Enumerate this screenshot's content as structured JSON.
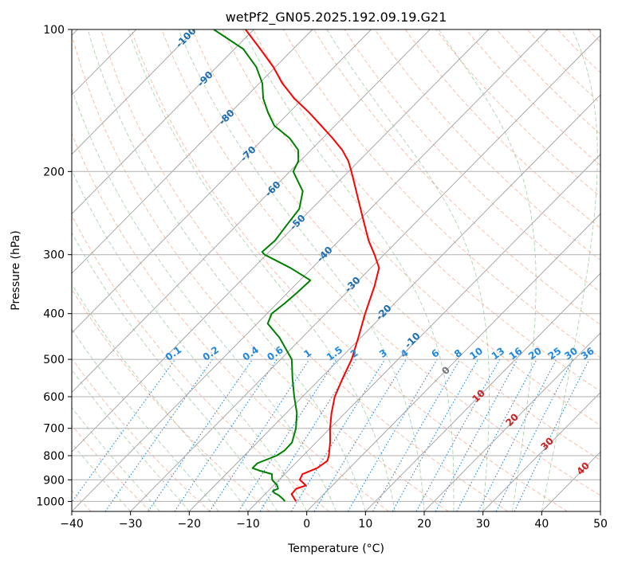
{
  "chart_data": {
    "type": "line",
    "subtype": "skew-T log-P diagram",
    "title": "wetPf2_GN05.2025.192.09.19.G21",
    "xlabel": "Temperature (°C)",
    "ylabel": "Pressure (hPa)",
    "xlim": [
      -40,
      50
    ],
    "ylim": [
      1050,
      100
    ],
    "y_scale": "log",
    "grid": true,
    "x_ticks": [
      -40,
      -30,
      -20,
      -10,
      0,
      10,
      20,
      30,
      40,
      50
    ],
    "y_ticks": [
      100,
      200,
      300,
      400,
      500,
      600,
      700,
      800,
      900,
      1000
    ],
    "isotherm_step_c": 10,
    "dry_adiabat_theta_c": [
      -40,
      -30,
      -20,
      -10,
      0,
      10,
      20,
      30,
      40,
      50,
      60,
      70,
      80,
      90,
      100,
      110,
      120,
      130,
      140,
      150,
      160,
      170,
      180,
      190,
      200,
      210,
      220
    ],
    "moist_adiabat_start_c": [
      -30,
      -25,
      -20,
      -15,
      -10,
      -5,
      0,
      5,
      10,
      15,
      20,
      25,
      30,
      35,
      40
    ],
    "mixing_ratio_lines": [
      "0.1",
      "0.2",
      "0.4",
      "0.6",
      "1",
      "1.5",
      "2",
      "3",
      "4",
      "6",
      "8",
      "10",
      "13",
      "16",
      "20",
      "25",
      "30",
      "36"
    ],
    "height_labels": {
      "blue": [
        "-100",
        "-90",
        "-80",
        "-70",
        "-60",
        "-50",
        "-40",
        "-30",
        "-20",
        "-10"
      ],
      "zero": "0",
      "red": [
        "10",
        "20",
        "30",
        "40"
      ]
    },
    "series": [
      {
        "color": "#ff0000",
        "points": [
          [
            1000,
            -3.5
          ],
          [
            965,
            -5.5
          ],
          [
            940,
            -5.6
          ],
          [
            925,
            -4.5
          ],
          [
            900,
            -6.5
          ],
          [
            875,
            -7
          ],
          [
            850,
            -5.5
          ],
          [
            820,
            -5
          ],
          [
            800,
            -5.6
          ],
          [
            750,
            -7.6
          ],
          [
            700,
            -10
          ],
          [
            650,
            -12.3
          ],
          [
            600,
            -14.5
          ],
          [
            550,
            -16.2
          ],
          [
            500,
            -17.9
          ],
          [
            450,
            -20.4
          ],
          [
            400,
            -23.3
          ],
          [
            350,
            -26.3
          ],
          [
            320,
            -28.6
          ],
          [
            300,
            -31.6
          ],
          [
            280,
            -35
          ],
          [
            250,
            -39.9
          ],
          [
            220,
            -45.4
          ],
          [
            200,
            -49.5
          ],
          [
            190,
            -51.8
          ],
          [
            180,
            -54.7
          ],
          [
            170,
            -58.3
          ],
          [
            160,
            -62.3
          ],
          [
            150,
            -66.6
          ],
          [
            140,
            -71.5
          ],
          [
            130,
            -76.1
          ],
          [
            120,
            -80.4
          ],
          [
            110,
            -85.6
          ],
          [
            100,
            -91.4
          ]
        ]
      },
      {
        "color": "#008000",
        "points": [
          [
            1000,
            -5.4
          ],
          [
            990,
            -6
          ],
          [
            970,
            -7.5
          ],
          [
            960,
            -8.6
          ],
          [
            950,
            -9.2
          ],
          [
            940,
            -8.7
          ],
          [
            925,
            -9.4
          ],
          [
            900,
            -11.2
          ],
          [
            875,
            -12.2
          ],
          [
            860,
            -15
          ],
          [
            850,
            -16.5
          ],
          [
            830,
            -16.5
          ],
          [
            800,
            -14.5
          ],
          [
            780,
            -14
          ],
          [
            750,
            -14.1
          ],
          [
            700,
            -15.8
          ],
          [
            650,
            -18.2
          ],
          [
            600,
            -21.4
          ],
          [
            550,
            -24.7
          ],
          [
            500,
            -28.1
          ],
          [
            450,
            -33.8
          ],
          [
            420,
            -38.2
          ],
          [
            400,
            -39.2
          ],
          [
            380,
            -38.7
          ],
          [
            360,
            -38.4
          ],
          [
            340,
            -38.2
          ],
          [
            320,
            -43.7
          ],
          [
            300,
            -50.3
          ],
          [
            296,
            -51.2
          ],
          [
            280,
            -50.9
          ],
          [
            260,
            -51.5
          ],
          [
            240,
            -52.1
          ],
          [
            220,
            -54.5
          ],
          [
            210,
            -56.9
          ],
          [
            200,
            -59.4
          ],
          [
            190,
            -60.3
          ],
          [
            180,
            -62.2
          ],
          [
            170,
            -65.6
          ],
          [
            160,
            -70.3
          ],
          [
            150,
            -73.6
          ],
          [
            140,
            -76.8
          ],
          [
            130,
            -79.5
          ],
          [
            120,
            -83.3
          ],
          [
            110,
            -88.5
          ],
          [
            100,
            -96.8
          ]
        ]
      }
    ]
  }
}
